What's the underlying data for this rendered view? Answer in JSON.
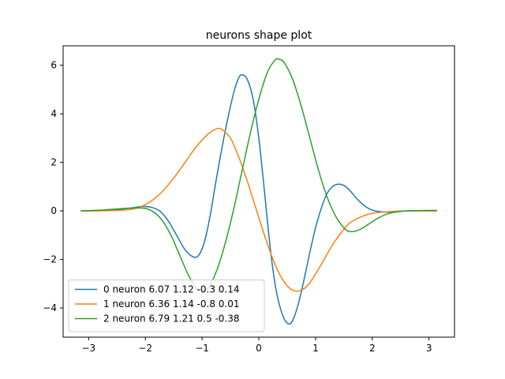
{
  "chart_data": {
    "type": "line",
    "title": "neurons shape plot",
    "xlabel": "",
    "ylabel": "",
    "xlim": [
      -3.45,
      3.45
    ],
    "ylim": [
      -5.2,
      6.8
    ],
    "xticks": [
      -3,
      -2,
      -1,
      0,
      1,
      2,
      3
    ],
    "yticks": [
      -4,
      -2,
      0,
      2,
      4,
      6
    ],
    "grid": false,
    "legend_position": "lower-left",
    "series": [
      {
        "name": "0 neuron 6.07 1.12 -0.3 0.14",
        "color": "#1f77b4",
        "points": [
          [
            -3.14,
            0.0
          ],
          [
            -2.8,
            0.01
          ],
          [
            -2.5,
            0.05
          ],
          [
            -2.25,
            0.12
          ],
          [
            -2.05,
            0.18
          ],
          [
            -1.9,
            0.15
          ],
          [
            -1.75,
            0.0
          ],
          [
            -1.6,
            -0.4
          ],
          [
            -1.45,
            -1.0
          ],
          [
            -1.3,
            -1.6
          ],
          [
            -1.15,
            -1.9
          ],
          [
            -1.05,
            -1.8
          ],
          [
            -0.95,
            -1.2
          ],
          [
            -0.85,
            -0.1
          ],
          [
            -0.75,
            1.3
          ],
          [
            -0.6,
            3.2
          ],
          [
            -0.45,
            4.8
          ],
          [
            -0.35,
            5.5
          ],
          [
            -0.28,
            5.6
          ],
          [
            -0.2,
            5.4
          ],
          [
            -0.1,
            4.6
          ],
          [
            0.0,
            3.0
          ],
          [
            0.1,
            0.8
          ],
          [
            0.2,
            -1.5
          ],
          [
            0.3,
            -3.2
          ],
          [
            0.42,
            -4.3
          ],
          [
            0.52,
            -4.65
          ],
          [
            0.6,
            -4.5
          ],
          [
            0.7,
            -3.8
          ],
          [
            0.8,
            -2.8
          ],
          [
            0.9,
            -1.7
          ],
          [
            1.0,
            -0.7
          ],
          [
            1.1,
            0.1
          ],
          [
            1.2,
            0.7
          ],
          [
            1.3,
            1.0
          ],
          [
            1.4,
            1.1
          ],
          [
            1.5,
            1.05
          ],
          [
            1.6,
            0.85
          ],
          [
            1.75,
            0.45
          ],
          [
            1.9,
            0.15
          ],
          [
            2.05,
            0.0
          ],
          [
            2.3,
            -0.05
          ],
          [
            2.6,
            0.0
          ],
          [
            3.14,
            0.0
          ]
        ]
      },
      {
        "name": "1 neuron 6.36 1.14 -0.8 0.01",
        "color": "#ff7f0e",
        "points": [
          [
            -3.14,
            0.0
          ],
          [
            -2.6,
            0.01
          ],
          [
            -2.3,
            0.05
          ],
          [
            -2.1,
            0.15
          ],
          [
            -1.9,
            0.4
          ],
          [
            -1.7,
            0.8
          ],
          [
            -1.5,
            1.35
          ],
          [
            -1.3,
            2.0
          ],
          [
            -1.1,
            2.65
          ],
          [
            -0.9,
            3.15
          ],
          [
            -0.75,
            3.38
          ],
          [
            -0.65,
            3.35
          ],
          [
            -0.5,
            3.0
          ],
          [
            -0.35,
            2.2
          ],
          [
            -0.2,
            1.2
          ],
          [
            -0.05,
            0.1
          ],
          [
            0.1,
            -1.0
          ],
          [
            0.25,
            -2.0
          ],
          [
            0.4,
            -2.75
          ],
          [
            0.55,
            -3.2
          ],
          [
            0.7,
            -3.3
          ],
          [
            0.85,
            -3.1
          ],
          [
            1.0,
            -2.6
          ],
          [
            1.15,
            -2.0
          ],
          [
            1.3,
            -1.4
          ],
          [
            1.45,
            -0.9
          ],
          [
            1.6,
            -0.5
          ],
          [
            1.8,
            -0.25
          ],
          [
            2.0,
            -0.1
          ],
          [
            2.3,
            -0.03
          ],
          [
            2.6,
            0.0
          ],
          [
            3.14,
            0.0
          ]
        ]
      },
      {
        "name": "2 neuron 6.79 1.21 0.5 -0.38",
        "color": "#2ca02c",
        "points": [
          [
            -3.14,
            0.0
          ],
          [
            -2.8,
            0.03
          ],
          [
            -2.5,
            0.08
          ],
          [
            -2.2,
            0.12
          ],
          [
            -2.0,
            0.1
          ],
          [
            -1.85,
            -0.05
          ],
          [
            -1.7,
            -0.4
          ],
          [
            -1.55,
            -1.0
          ],
          [
            -1.4,
            -1.8
          ],
          [
            -1.25,
            -2.6
          ],
          [
            -1.1,
            -3.2
          ],
          [
            -1.0,
            -3.3
          ],
          [
            -0.9,
            -3.2
          ],
          [
            -0.75,
            -2.5
          ],
          [
            -0.6,
            -1.4
          ],
          [
            -0.45,
            0.0
          ],
          [
            -0.3,
            1.6
          ],
          [
            -0.15,
            3.2
          ],
          [
            0.0,
            4.6
          ],
          [
            0.15,
            5.7
          ],
          [
            0.28,
            6.2
          ],
          [
            0.35,
            6.25
          ],
          [
            0.45,
            6.1
          ],
          [
            0.6,
            5.4
          ],
          [
            0.75,
            4.3
          ],
          [
            0.9,
            3.0
          ],
          [
            1.05,
            1.7
          ],
          [
            1.2,
            0.6
          ],
          [
            1.35,
            -0.2
          ],
          [
            1.5,
            -0.7
          ],
          [
            1.6,
            -0.85
          ],
          [
            1.75,
            -0.8
          ],
          [
            1.9,
            -0.6
          ],
          [
            2.1,
            -0.3
          ],
          [
            2.3,
            -0.1
          ],
          [
            2.6,
            0.0
          ],
          [
            3.14,
            0.02
          ]
        ]
      }
    ]
  }
}
